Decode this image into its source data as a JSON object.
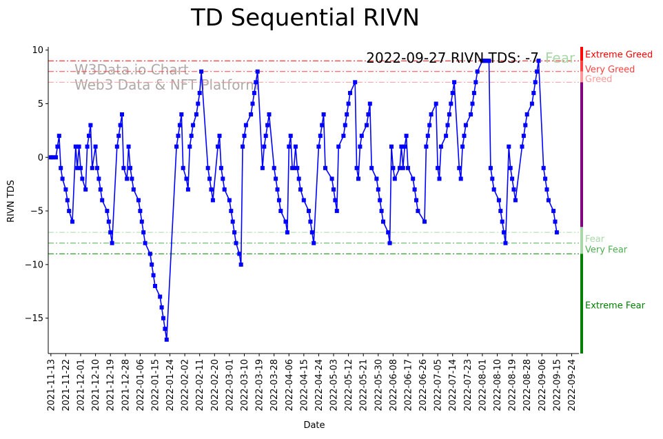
{
  "chart_data": {
    "type": "line",
    "title": "TD Sequential RIVN",
    "xlabel": "Date",
    "ylabel": "RIVN TDS",
    "ylim": [
      -18.3,
      10.3
    ],
    "yticks": [
      10,
      5,
      0,
      -5,
      -10,
      -15
    ],
    "grid": false,
    "status_text": "2022-09-27 RIVN TDS: -7",
    "status_label": "Fear",
    "watermark": [
      "W3Data.io Chart",
      "Web3 Data & NFT Platform"
    ],
    "x_ticks": [
      "2021-11-13",
      "2021-11-22",
      "2021-12-01",
      "2021-12-10",
      "2021-12-19",
      "2021-12-28",
      "2022-01-06",
      "2022-01-15",
      "2022-01-24",
      "2022-02-02",
      "2022-02-11",
      "2022-02-20",
      "2022-03-01",
      "2022-03-10",
      "2022-03-19",
      "2022-03-28",
      "2022-04-06",
      "2022-04-15",
      "2022-04-24",
      "2022-05-03",
      "2022-05-12",
      "2022-05-21",
      "2022-05-30",
      "2022-06-08",
      "2022-06-17",
      "2022-06-26",
      "2022-07-05",
      "2022-07-14",
      "2022-07-23",
      "2022-08-01",
      "2022-08-10",
      "2022-08-19",
      "2022-08-28",
      "2022-09-06",
      "2022-09-15",
      "2022-09-24"
    ],
    "levels": [
      {
        "name": "Extreme Greed",
        "value": 9,
        "color": "#ff0000"
      },
      {
        "name": "Very Greed",
        "value": 8,
        "color": "#ff4040"
      },
      {
        "name": "Greed",
        "value": 7,
        "color": "#ff9999"
      },
      {
        "name": "Fear",
        "value": -7,
        "color": "#a8d8a8"
      },
      {
        "name": "Very Fear",
        "value": -8,
        "color": "#4caf50"
      },
      {
        "name": "Extreme Fear",
        "value": -9,
        "color": "#008000"
      }
    ],
    "colorbar": [
      {
        "from": 10.3,
        "to": 9,
        "color": "#ff0000"
      },
      {
        "from": 9,
        "to": 8,
        "color": "#ff4040"
      },
      {
        "from": 8,
        "to": 7,
        "color": "#ff9999"
      },
      {
        "from": 7,
        "to": -6.5,
        "color": "#800080"
      },
      {
        "from": -6.5,
        "to": -9,
        "color": "#a8d8a8"
      },
      {
        "from": -9,
        "to": -18.3,
        "color": "#008000"
      }
    ],
    "series": [
      {
        "color": "#0000ff",
        "start_date": "2021-11-13",
        "points": [
          [
            "2021-11-13",
            0
          ],
          [
            "2021-11-14",
            0
          ],
          [
            "2021-11-16",
            0
          ],
          [
            "2021-11-17",
            1
          ],
          [
            "2021-11-18",
            2
          ],
          [
            "2021-11-19",
            -1
          ],
          [
            "2021-11-20",
            -2
          ],
          [
            "2021-11-22",
            -3
          ],
          [
            "2021-11-23",
            -4
          ],
          [
            "2021-11-24",
            -5
          ],
          [
            "2021-11-26",
            -6
          ],
          [
            "2021-11-28",
            1
          ],
          [
            "2021-11-29",
            -1
          ],
          [
            "2021-11-30",
            1
          ],
          [
            "2021-12-01",
            -1
          ],
          [
            "2021-12-02",
            -2
          ],
          [
            "2021-12-04",
            -3
          ],
          [
            "2021-12-05",
            1
          ],
          [
            "2021-12-06",
            2
          ],
          [
            "2021-12-07",
            3
          ],
          [
            "2021-12-08",
            -1
          ],
          [
            "2021-12-10",
            1
          ],
          [
            "2021-12-11",
            -1
          ],
          [
            "2021-12-12",
            -2
          ],
          [
            "2021-12-13",
            -3
          ],
          [
            "2021-12-14",
            -4
          ],
          [
            "2021-12-17",
            -5
          ],
          [
            "2021-12-18",
            -6
          ],
          [
            "2021-12-19",
            -7
          ],
          [
            "2021-12-20",
            -8
          ],
          [
            "2021-12-23",
            1
          ],
          [
            "2021-12-24",
            2
          ],
          [
            "2021-12-25",
            3
          ],
          [
            "2021-12-26",
            4
          ],
          [
            "2021-12-27",
            -1
          ],
          [
            "2021-12-29",
            -2
          ],
          [
            "2021-12-30",
            1
          ],
          [
            "2021-12-31",
            -1
          ],
          [
            "2022-01-01",
            -2
          ],
          [
            "2022-01-02",
            -3
          ],
          [
            "2022-01-05",
            -4
          ],
          [
            "2022-01-06",
            -5
          ],
          [
            "2022-01-07",
            -6
          ],
          [
            "2022-01-08",
            -7
          ],
          [
            "2022-01-09",
            -8
          ],
          [
            "2022-01-12",
            -9
          ],
          [
            "2022-01-13",
            -10
          ],
          [
            "2022-01-14",
            -11
          ],
          [
            "2022-01-15",
            -12
          ],
          [
            "2022-01-18",
            -13
          ],
          [
            "2022-01-19",
            -14
          ],
          [
            "2022-01-20",
            -15
          ],
          [
            "2022-01-21",
            -16
          ],
          [
            "2022-01-22",
            -17
          ],
          [
            "2022-01-28",
            1
          ],
          [
            "2022-01-29",
            2
          ],
          [
            "2022-01-30",
            3
          ],
          [
            "2022-01-31",
            4
          ],
          [
            "2022-02-01",
            -1
          ],
          [
            "2022-02-03",
            -2
          ],
          [
            "2022-02-04",
            -3
          ],
          [
            "2022-02-05",
            1
          ],
          [
            "2022-02-06",
            2
          ],
          [
            "2022-02-07",
            3
          ],
          [
            "2022-02-09",
            4
          ],
          [
            "2022-02-10",
            5
          ],
          [
            "2022-02-11",
            6
          ],
          [
            "2022-02-12",
            8
          ],
          [
            "2022-02-16",
            -1
          ],
          [
            "2022-02-17",
            -2
          ],
          [
            "2022-02-18",
            -3
          ],
          [
            "2022-02-19",
            -4
          ],
          [
            "2022-02-22",
            1
          ],
          [
            "2022-02-23",
            2
          ],
          [
            "2022-02-24",
            -1
          ],
          [
            "2022-02-25",
            -2
          ],
          [
            "2022-02-26",
            -3
          ],
          [
            "2022-03-01",
            -4
          ],
          [
            "2022-03-02",
            -5
          ],
          [
            "2022-03-03",
            -6
          ],
          [
            "2022-03-04",
            -7
          ],
          [
            "2022-03-05",
            -8
          ],
          [
            "2022-03-07",
            -9
          ],
          [
            "2022-03-08",
            -10
          ],
          [
            "2022-03-09",
            1
          ],
          [
            "2022-03-10",
            2
          ],
          [
            "2022-03-11",
            3
          ],
          [
            "2022-03-14",
            4
          ],
          [
            "2022-03-15",
            5
          ],
          [
            "2022-03-16",
            6
          ],
          [
            "2022-03-17",
            7
          ],
          [
            "2022-03-18",
            8
          ],
          [
            "2022-03-21",
            -1
          ],
          [
            "2022-03-22",
            1
          ],
          [
            "2022-03-23",
            2
          ],
          [
            "2022-03-24",
            3
          ],
          [
            "2022-03-25",
            4
          ],
          [
            "2022-03-28",
            -1
          ],
          [
            "2022-03-29",
            -2
          ],
          [
            "2022-03-30",
            -3
          ],
          [
            "2022-03-31",
            -4
          ],
          [
            "2022-04-01",
            -5
          ],
          [
            "2022-04-04",
            -6
          ],
          [
            "2022-04-05",
            -7
          ],
          [
            "2022-04-06",
            1
          ],
          [
            "2022-04-07",
            2
          ],
          [
            "2022-04-08",
            -1
          ],
          [
            "2022-04-09",
            -1
          ],
          [
            "2022-04-10",
            1
          ],
          [
            "2022-04-11",
            -1
          ],
          [
            "2022-04-12",
            -2
          ],
          [
            "2022-04-13",
            -3
          ],
          [
            "2022-04-15",
            -4
          ],
          [
            "2022-04-18",
            -5
          ],
          [
            "2022-04-19",
            -6
          ],
          [
            "2022-04-20",
            -7
          ],
          [
            "2022-04-21",
            -8
          ],
          [
            "2022-04-24",
            1
          ],
          [
            "2022-04-25",
            2
          ],
          [
            "2022-04-26",
            3
          ],
          [
            "2022-04-27",
            4
          ],
          [
            "2022-04-28",
            -1
          ],
          [
            "2022-05-02",
            -2
          ],
          [
            "2022-05-03",
            -3
          ],
          [
            "2022-05-04",
            -4
          ],
          [
            "2022-05-05",
            -5
          ],
          [
            "2022-05-06",
            1
          ],
          [
            "2022-05-09",
            2
          ],
          [
            "2022-05-10",
            3
          ],
          [
            "2022-05-11",
            4
          ],
          [
            "2022-05-12",
            5
          ],
          [
            "2022-05-13",
            6
          ],
          [
            "2022-05-16",
            7
          ],
          [
            "2022-05-17",
            -1
          ],
          [
            "2022-05-18",
            -2
          ],
          [
            "2022-05-19",
            1
          ],
          [
            "2022-05-20",
            2
          ],
          [
            "2022-05-23",
            3
          ],
          [
            "2022-05-24",
            4
          ],
          [
            "2022-05-25",
            5
          ],
          [
            "2022-05-26",
            -1
          ],
          [
            "2022-05-29",
            -2
          ],
          [
            "2022-05-30",
            -3
          ],
          [
            "2022-05-31",
            -4
          ],
          [
            "2022-06-01",
            -5
          ],
          [
            "2022-06-02",
            -6
          ],
          [
            "2022-06-05",
            -7
          ],
          [
            "2022-06-06",
            -8
          ],
          [
            "2022-06-07",
            1
          ],
          [
            "2022-06-08",
            -1
          ],
          [
            "2022-06-09",
            -2
          ],
          [
            "2022-06-12",
            -1
          ],
          [
            "2022-06-13",
            1
          ],
          [
            "2022-06-14",
            -1
          ],
          [
            "2022-06-15",
            1
          ],
          [
            "2022-06-16",
            2
          ],
          [
            "2022-06-17",
            -1
          ],
          [
            "2022-06-20",
            -2
          ],
          [
            "2022-06-21",
            -3
          ],
          [
            "2022-06-22",
            -4
          ],
          [
            "2022-06-23",
            -5
          ],
          [
            "2022-06-27",
            -6
          ],
          [
            "2022-06-28",
            1
          ],
          [
            "2022-06-29",
            2
          ],
          [
            "2022-06-30",
            3
          ],
          [
            "2022-07-01",
            4
          ],
          [
            "2022-07-04",
            5
          ],
          [
            "2022-07-05",
            -1
          ],
          [
            "2022-07-06",
            -2
          ],
          [
            "2022-07-07",
            1
          ],
          [
            "2022-07-10",
            2
          ],
          [
            "2022-07-11",
            3
          ],
          [
            "2022-07-12",
            4
          ],
          [
            "2022-07-13",
            5
          ],
          [
            "2022-07-14",
            6
          ],
          [
            "2022-07-15",
            7
          ],
          [
            "2022-07-18",
            -1
          ],
          [
            "2022-07-19",
            -2
          ],
          [
            "2022-07-20",
            1
          ],
          [
            "2022-07-21",
            2
          ],
          [
            "2022-07-22",
            3
          ],
          [
            "2022-07-25",
            4
          ],
          [
            "2022-07-26",
            5
          ],
          [
            "2022-07-27",
            6
          ],
          [
            "2022-07-28",
            7
          ],
          [
            "2022-07-29",
            8
          ],
          [
            "2022-08-01",
            9
          ],
          [
            "2022-08-02",
            9
          ],
          [
            "2022-08-03",
            9
          ],
          [
            "2022-08-04",
            9
          ],
          [
            "2022-08-05",
            9
          ],
          [
            "2022-08-06",
            -1
          ],
          [
            "2022-08-07",
            -2
          ],
          [
            "2022-08-08",
            -3
          ],
          [
            "2022-08-11",
            -4
          ],
          [
            "2022-08-12",
            -5
          ],
          [
            "2022-08-13",
            -6
          ],
          [
            "2022-08-14",
            -7
          ],
          [
            "2022-08-15",
            -8
          ],
          [
            "2022-08-17",
            1
          ],
          [
            "2022-08-18",
            -1
          ],
          [
            "2022-08-19",
            -2
          ],
          [
            "2022-08-20",
            -3
          ],
          [
            "2022-08-21",
            -4
          ],
          [
            "2022-08-25",
            1
          ],
          [
            "2022-08-26",
            2
          ],
          [
            "2022-08-27",
            3
          ],
          [
            "2022-08-28",
            4
          ],
          [
            "2022-08-31",
            5
          ],
          [
            "2022-09-01",
            6
          ],
          [
            "2022-09-02",
            7
          ],
          [
            "2022-09-03",
            8
          ],
          [
            "2022-09-04",
            9
          ],
          [
            "2022-09-07",
            -1
          ],
          [
            "2022-09-08",
            -2
          ],
          [
            "2022-09-09",
            -3
          ],
          [
            "2022-09-10",
            -4
          ],
          [
            "2022-09-13",
            -5
          ],
          [
            "2022-09-14",
            -6
          ],
          [
            "2022-09-15",
            -7
          ]
        ]
      }
    ]
  }
}
